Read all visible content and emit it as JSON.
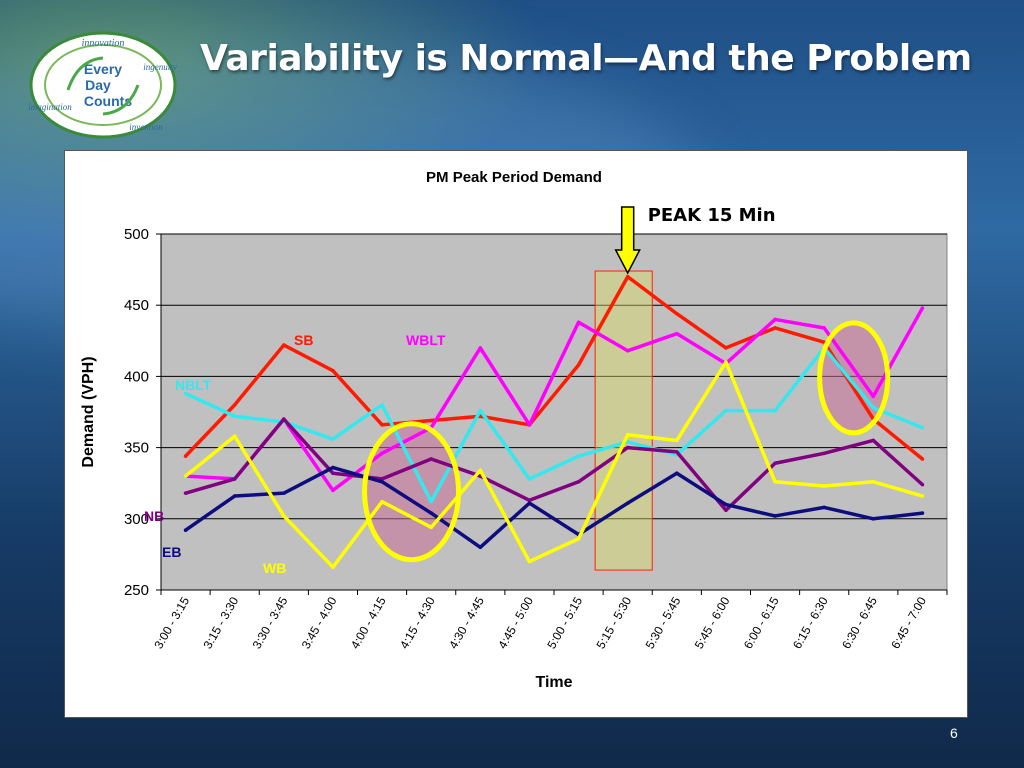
{
  "slide": {
    "title": "Variability is Normal—And the Problem",
    "page_number": "6",
    "logo": {
      "line1": "Every",
      "line2": "Day",
      "line3": "Counts",
      "ring_words": [
        "innovation",
        "ingenuity",
        "imagination",
        "invention"
      ]
    }
  },
  "annotation": {
    "peak_label": "PEAK 15 Min"
  },
  "chart_data": {
    "type": "line",
    "title": "PM Peak Period Demand",
    "xlabel": "Time",
    "ylabel": "Demand (VPH)",
    "ylim": [
      250,
      500
    ],
    "yticks": [
      250,
      300,
      350,
      400,
      450,
      500
    ],
    "grid": true,
    "categories": [
      "3:00 - 3:15",
      "3:15 - 3:30",
      "3:30 - 3:45",
      "3:45 - 4:00",
      "4:00 - 4:15",
      "4:15 - 4:30",
      "4:30 - 4:45",
      "4:45 - 5:00",
      "5:00 - 5:15",
      "5:15 - 5:30",
      "5:30 - 5:45",
      "5:45 - 6:00",
      "6:00 - 6:15",
      "6:15 - 6:30",
      "6:30 - 6:45",
      "6:45 - 7:00"
    ],
    "series": [
      {
        "name": "SB",
        "color": "#ff1a00",
        "values": [
          344,
          380,
          422,
          404,
          366,
          369,
          372,
          366,
          408,
          470,
          444,
          420,
          434,
          424,
          370,
          342
        ]
      },
      {
        "name": "WBLT",
        "color": "#ff00ff",
        "values": [
          330,
          328,
          370,
          320,
          346,
          364,
          420,
          366,
          438,
          418,
          430,
          409,
          440,
          434,
          386,
          448
        ]
      },
      {
        "name": "NBLT",
        "color": "#33e8ef",
        "values": [
          388,
          372,
          368,
          356,
          380,
          312,
          376,
          328,
          344,
          354,
          345,
          376,
          376,
          420,
          378,
          364
        ]
      },
      {
        "name": "NB",
        "color": "#800080",
        "values": [
          318,
          328,
          370,
          332,
          328,
          342,
          330,
          313,
          326,
          350,
          347,
          306,
          339,
          346,
          355,
          324
        ]
      },
      {
        "name": "EB",
        "color": "#0d0d80",
        "values": [
          292,
          316,
          318,
          336,
          326,
          304,
          280,
          311,
          289,
          311,
          332,
          310,
          302,
          308,
          300,
          304
        ]
      },
      {
        "name": "WB",
        "color": "#ffff00",
        "values": [
          330,
          358,
          302,
          266,
          312,
          294,
          334,
          270,
          286,
          359,
          355,
          410,
          326,
          323,
          326,
          316
        ]
      }
    ]
  }
}
